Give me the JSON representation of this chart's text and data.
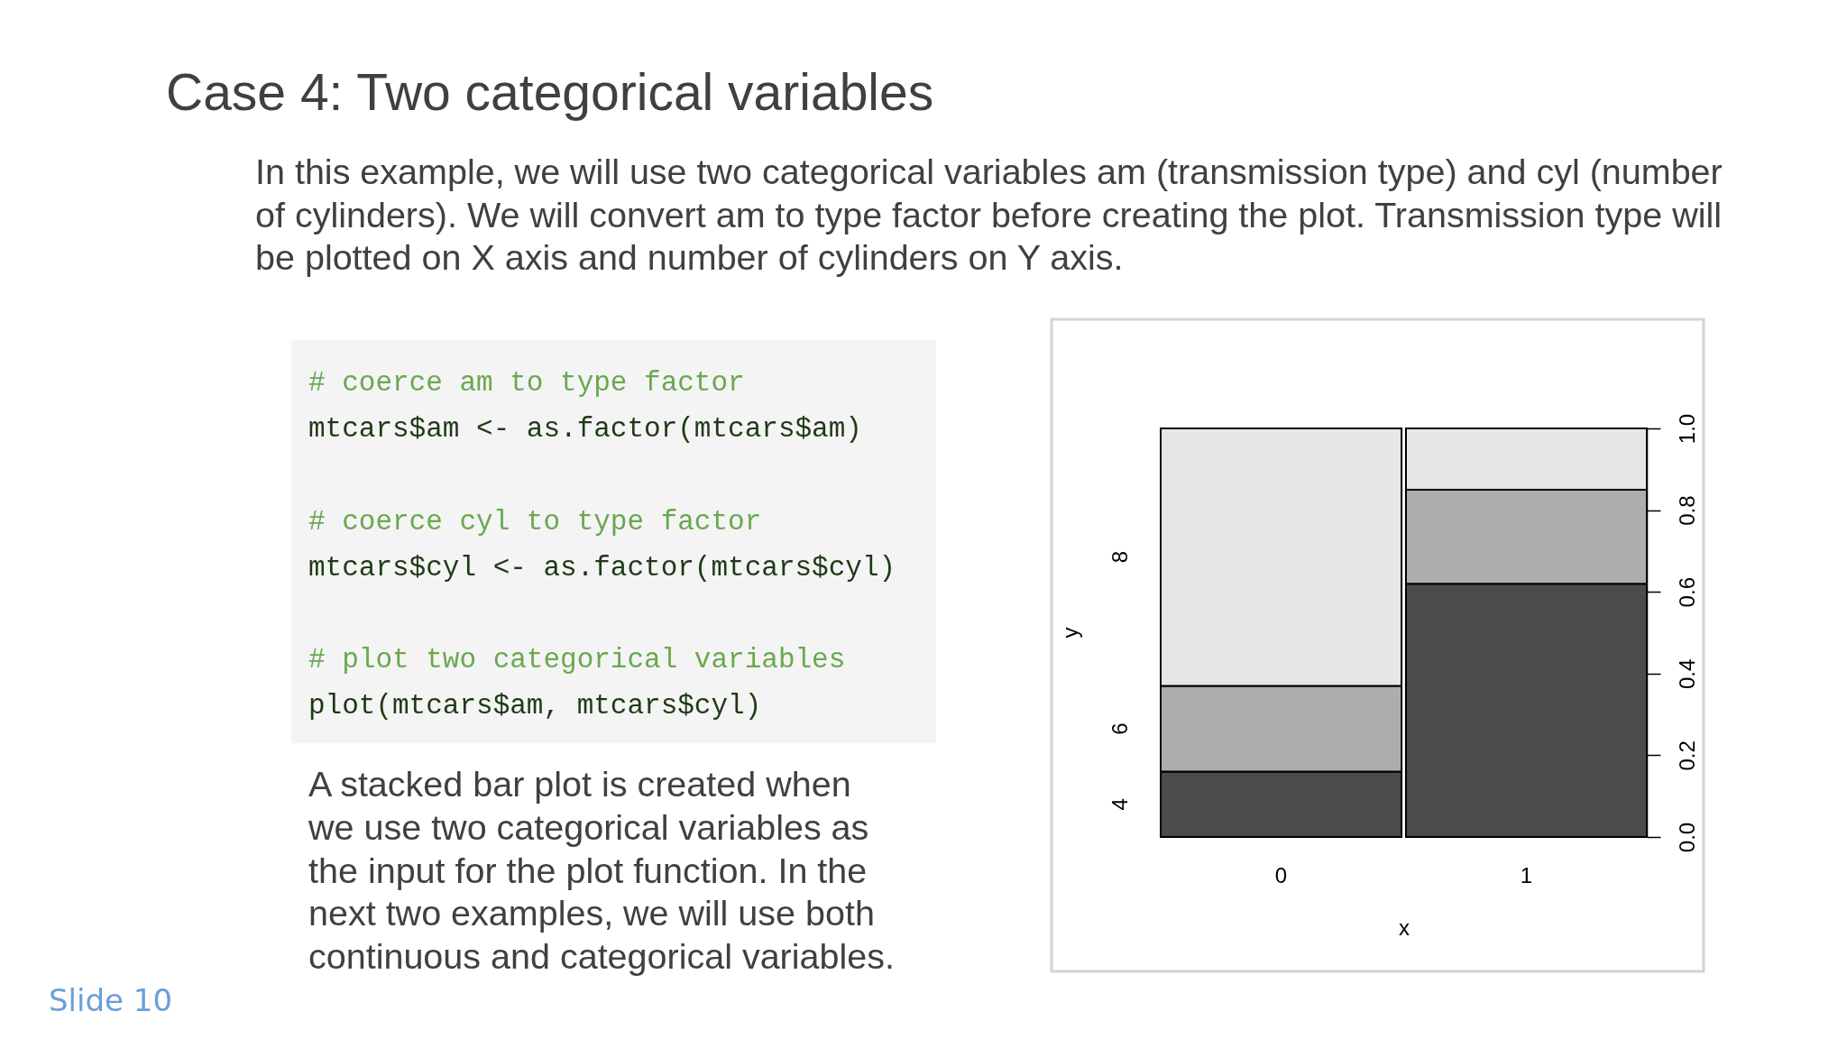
{
  "chart_data": {
    "type": "bar",
    "title": "Case 4: Two categorical variables",
    "subtitle": "In this example, we will use two categorical variables am (transmission type) and cyl (number of cylinders). We will convert am to type factor before creating the plot. Transmission type will be plotted on X axis and number of cylinders on Y axis.",
    "xlabel": "x",
    "ylabel": "y",
    "categories": [
      "0",
      "1"
    ],
    "series": [
      {
        "name": "4",
        "color": "#4b4a4d",
        "values": [
          0.16,
          0.62
        ]
      },
      {
        "name": "6",
        "color": "#adacae",
        "values": [
          0.21,
          0.23
        ]
      },
      {
        "name": "8",
        "color": "#e6e5e8",
        "values": [
          0.63,
          0.15
        ]
      }
    ],
    "stacked": true,
    "ylim": [
      0,
      1
    ],
    "yticks": [
      {
        "value": 0,
        "label": "0.0"
      },
      0.2,
      0.4,
      0.6,
      0.8,
      {
        "value": 1,
        "label": "1.0"
      }
    ],
    "grid": false,
    "legend": false,
    "annotations": [
      "# coerce am to type factor",
      "mtcars$am <- as.factor(mtcars$am)",
      "# coerce cyl to type factor",
      "mtcars$cyl <- as.factor(mtcars$cyl)",
      "# plot two categorical variables",
      "plot(mtcars$am, mtcars$cyl)",
      "A stacked bar plot is created when we use two categorical variables as the input for the plot function. In the next two examples, we will use both continuous and categorical variables.",
      "Slide 10"
    ]
  }
}
